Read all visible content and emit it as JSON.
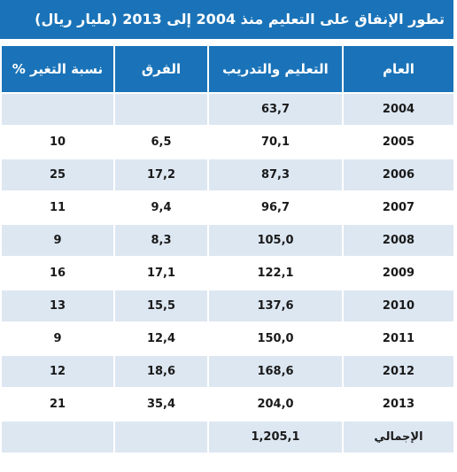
{
  "title": "تطور الإنفاق على التعليم منذ 2004 إلى 2013 (مليار ريال)",
  "headers": {
    "year": "العام",
    "education": "التعليم والتدريب",
    "difference": "الفرق",
    "change_pct": "نسبة التغير %"
  },
  "rows": [
    {
      "year": "2004",
      "education": "63,7",
      "difference": "",
      "change_pct": ""
    },
    {
      "year": "2005",
      "education": "70,1",
      "difference": "6,5",
      "change_pct": "10"
    },
    {
      "year": "2006",
      "education": "87,3",
      "difference": "17,2",
      "change_pct": "25"
    },
    {
      "year": "2007",
      "education": "96,7",
      "difference": "9,4",
      "change_pct": "11"
    },
    {
      "year": "2008",
      "education": "105,0",
      "difference": "8,3",
      "change_pct": "9"
    },
    {
      "year": "2009",
      "education": "122,1",
      "difference": "17,1",
      "change_pct": "16"
    },
    {
      "year": "2010",
      "education": "137,6",
      "difference": "15,5",
      "change_pct": "13"
    },
    {
      "year": "2011",
      "education": "150,0",
      "difference": "12,4",
      "change_pct": "9"
    },
    {
      "year": "2012",
      "education": "168,6",
      "difference": "18,6",
      "change_pct": "12"
    },
    {
      "year": "2013",
      "education": "204,0",
      "difference": "35,4",
      "change_pct": "21"
    }
  ],
  "total": {
    "label": "الإجمالي",
    "education": "1,205,1",
    "difference": "",
    "change_pct": ""
  },
  "colors": {
    "header_bg": "#1a73b8",
    "row_alt": "#dde7f2",
    "row_plain": "#ffffff"
  }
}
